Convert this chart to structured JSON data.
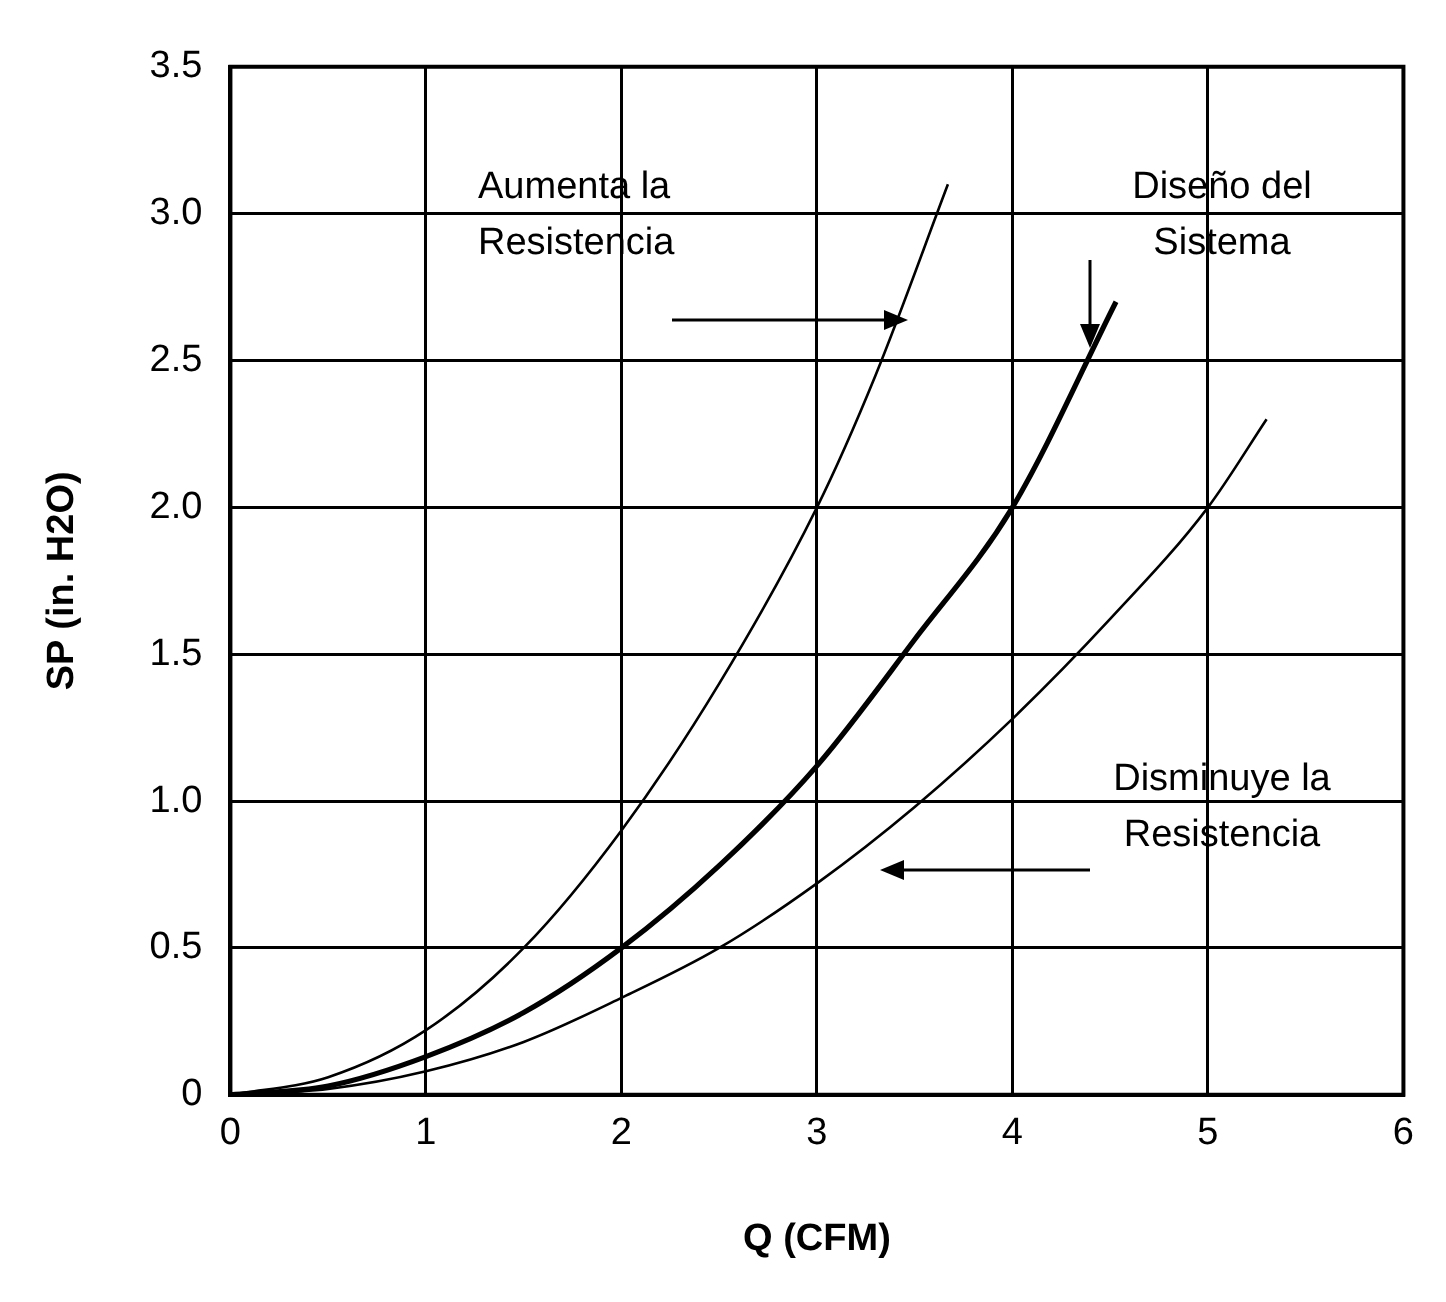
{
  "chart_data": {
    "type": "line",
    "xlabel": "Q (CFM)",
    "ylabel": "SP (in. H2O)",
    "xlim": [
      0,
      6
    ],
    "xticks": [
      0,
      1,
      2,
      3,
      4,
      5,
      6
    ],
    "ylim": [
      0,
      3.5
    ],
    "yticks": [
      {
        "value": 0,
        "label": "0"
      },
      0.5,
      {
        "value": 1,
        "label": "1.0"
      },
      1.5,
      {
        "value": 2,
        "label": "2.0"
      },
      2.5,
      {
        "value": 3,
        "label": "3.0"
      },
      3.5
    ],
    "grid": true,
    "legend": false,
    "marker": "none",
    "line_style": "solid",
    "series": [
      {
        "color": "#000000",
        "x": [
          0,
          0.5,
          1,
          1.5,
          2,
          2.5,
          3,
          3.3,
          3.67
        ],
        "values": [
          0,
          0.06,
          0.22,
          0.5,
          0.9,
          1.4,
          2.0,
          2.45,
          3.1
        ]
      },
      {
        "color": "#000000",
        "x": [
          0,
          0.5,
          1,
          1.5,
          2,
          2.5,
          3,
          3.5,
          4,
          4.53
        ],
        "values": [
          0,
          0.03,
          0.13,
          0.28,
          0.5,
          0.78,
          1.12,
          1.55,
          2.0,
          2.7
        ]
      },
      {
        "color": "#000000",
        "x": [
          0,
          0.5,
          1,
          1.5,
          2,
          2.5,
          3,
          3.5,
          4,
          4.5,
          5,
          5.3
        ],
        "values": [
          0,
          0.02,
          0.08,
          0.18,
          0.33,
          0.5,
          0.72,
          0.98,
          1.28,
          1.62,
          2.0,
          2.3
        ]
      }
    ],
    "annotations": [
      "Aumenta la Resistencia",
      "Diseño del Sistema",
      "Disminuye la Resistencia"
    ]
  }
}
